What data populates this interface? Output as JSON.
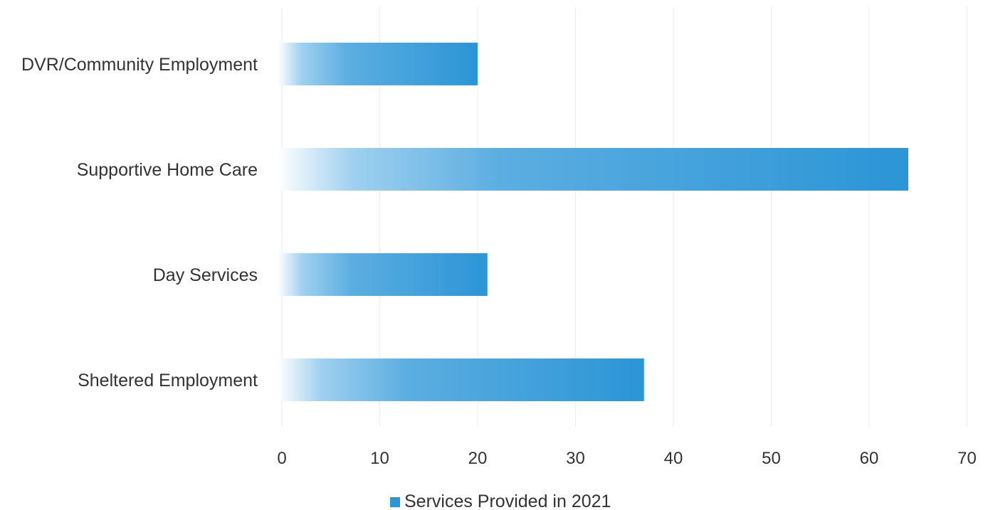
{
  "chart_data": {
    "type": "bar",
    "orientation": "horizontal",
    "title": "",
    "xlabel": "",
    "ylabel": "",
    "categories": [
      "DVR/Community Employment",
      "Supportive Home Care",
      "Day Services",
      "Sheltered Employment"
    ],
    "series": [
      {
        "name": "Services Provided in 2021",
        "values": [
          20,
          64,
          21,
          37
        ]
      }
    ],
    "xlim": [
      0,
      70
    ],
    "xticks": [
      "0",
      "10",
      "20",
      "30",
      "40",
      "50",
      "60",
      "70"
    ],
    "grid": true,
    "legend_position": "bottom",
    "bar_color": "#2b95d6"
  }
}
